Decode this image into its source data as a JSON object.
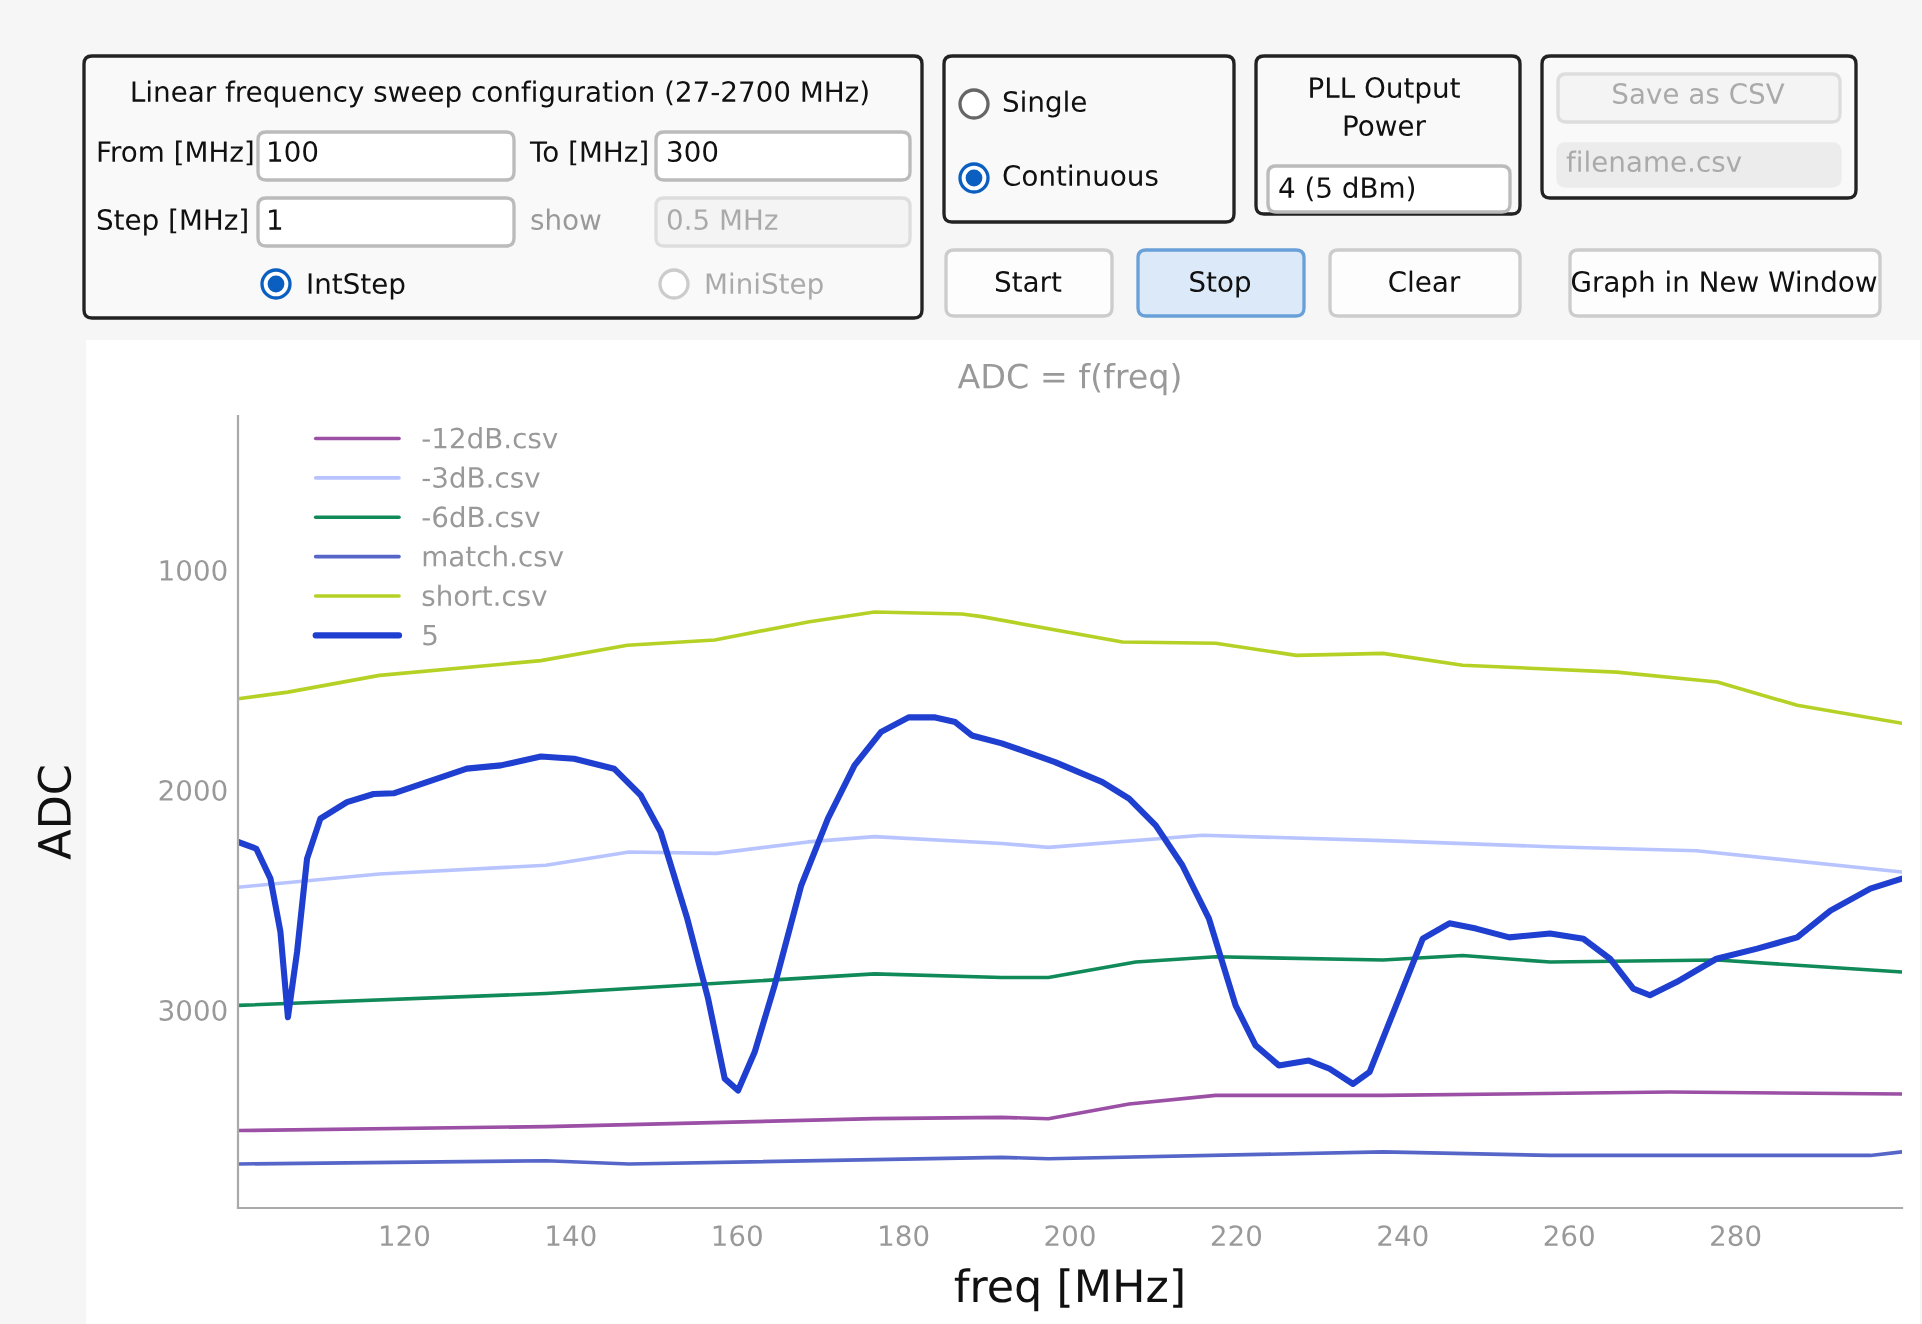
{
  "chart_data": [
    {
      "type": "other",
      "annotations": [
        "Linear frequency sweep configuration (27-2700 MHz)",
        "From [MHz]",
        "100",
        "To [MHz]",
        "300",
        "Step [MHz]",
        "1",
        "show",
        "0.5 MHz",
        "IntStep",
        "MiniStep",
        "Single",
        "Continuous",
        "PLL Output",
        "Power",
        "4 (5 dBm)",
        "Save as CSV",
        "filename.csv",
        "Start",
        "Stop",
        "Clear",
        "Graph in New Window"
      ]
    },
    {
      "type": "line",
      "title": "ADC = f(freq)",
      "xlabel": "freq [MHz]",
      "ylabel": "ADC",
      "xlim": [
        100,
        300
      ],
      "xticks": [
        120,
        140,
        160,
        180,
        200,
        220,
        240,
        260,
        280
      ],
      "ylim": [
        3900,
        300
      ],
      "yticks": [
        1000,
        2000,
        3000
      ],
      "grid": false,
      "legend": "top left",
      "series": [
        {
          "name": "-12dB.csv",
          "color": "#9b4fa5",
          "x": [
            100,
            137,
            176.5,
            191.8,
            197.4,
            207.1,
            217.5,
            237.6,
            272.1,
            300
          ],
          "values": [
            3548,
            3530,
            3494,
            3488,
            3494,
            3427,
            3388,
            3388,
            3373,
            3382
          ]
        },
        {
          "name": "-3dB.csv",
          "color": "#b8c4ff",
          "x": [
            100,
            117,
            137,
            147,
            157.5,
            168.5,
            176.5,
            191.8,
            197.4,
            215.9,
            237.6,
            257.7,
            275.3,
            300
          ],
          "values": [
            2442,
            2382,
            2342,
            2282,
            2288,
            2236,
            2212,
            2243,
            2261,
            2206,
            2230,
            2258,
            2276,
            2373
          ]
        },
        {
          "name": "-6dB.csv",
          "color": "#108a58",
          "x": [
            100,
            137,
            176.5,
            191.8,
            197.4,
            207.9,
            217.5,
            237.6,
            247.2,
            257.7,
            277.8,
            300
          ],
          "values": [
            2979,
            2925,
            2836,
            2852,
            2852,
            2782,
            2758,
            2773,
            2752,
            2782,
            2773,
            2827
          ]
        },
        {
          "name": "match.csv",
          "color": "#5566c8",
          "x": [
            100,
            137,
            147,
            191.8,
            197.4,
            237.6,
            257.7,
            296.2,
            300
          ],
          "values": [
            3700,
            3685,
            3700,
            3670,
            3676,
            3645,
            3661,
            3661,
            3645
          ]
        },
        {
          "name": "short.csv",
          "color": "#b5d126",
          "x": [
            100,
            106,
            117,
            136.4,
            146.8,
            157.3,
            168.5,
            176.5,
            187,
            189.4,
            206.3,
            217.5,
            227.2,
            237.6,
            247.2,
            265.7,
            277.8,
            287.4,
            300
          ],
          "values": [
            1585,
            1555,
            1479,
            1412,
            1342,
            1318,
            1236,
            1191,
            1200,
            1212,
            1327,
            1333,
            1388,
            1379,
            1433,
            1464,
            1509,
            1615,
            1697
          ]
        },
        {
          "name": "5",
          "color": "#1f3fd0",
          "x": [
            100,
            102.2,
            103.9,
            105.1,
            106,
            107.1,
            108.3,
            109.9,
            113.1,
            116.3,
            118.7,
            122.7,
            127.5,
            131.6,
            136.4,
            140.4,
            145.2,
            148.4,
            150.8,
            154,
            156.5,
            158.5,
            160.1,
            162.1,
            164.5,
            167.7,
            170.9,
            174.1,
            177.3,
            180.6,
            183.8,
            186.2,
            188.2,
            191.8,
            198.2,
            203.9,
            207.1,
            210.3,
            213.5,
            216.7,
            219.9,
            222.3,
            225.1,
            228.7,
            231.2,
            234,
            236,
            239.2,
            242.4,
            245.6,
            248.8,
            252.8,
            257.7,
            261.7,
            264.9,
            267.7,
            269.7,
            272.9,
            277.7,
            282.6,
            287.4,
            291.4,
            296.2,
            300
          ],
          "values": [
            2236,
            2267,
            2403,
            2645,
            3033,
            2736,
            2312,
            2130,
            2055,
            2018,
            2015,
            1964,
            1903,
            1888,
            1848,
            1858,
            1903,
            2024,
            2191,
            2585,
            2948,
            3312,
            3366,
            3191,
            2888,
            2433,
            2130,
            1888,
            1736,
            1670,
            1670,
            1691,
            1752,
            1788,
            1873,
            1964,
            2039,
            2161,
            2342,
            2585,
            2979,
            3161,
            3252,
            3230,
            3267,
            3336,
            3282,
            2979,
            2676,
            2606,
            2630,
            2670,
            2652,
            2676,
            2767,
            2903,
            2933,
            2873,
            2767,
            2721,
            2670,
            2548,
            2448,
            2403
          ]
        }
      ]
    }
  ]
}
